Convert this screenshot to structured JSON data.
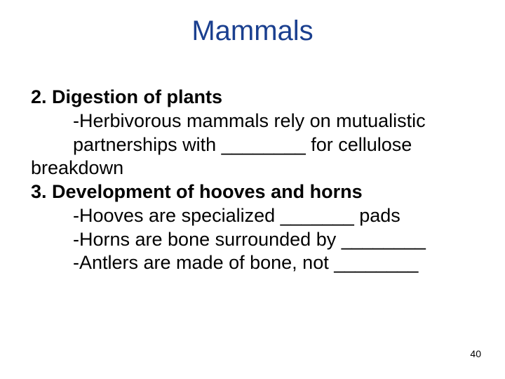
{
  "title": "Mammals",
  "title_color": "#1a3f8f",
  "title_fontsize": 40,
  "body_color": "#000000",
  "body_fontsize": 27,
  "background_color": "#ffffff",
  "lines": {
    "l1": "2. Digestion of plants",
    "l2": "-Herbivorous mammals rely on mutualistic partnerships with ________ for cellulose",
    "l3": "breakdown",
    "l4": "3. Development of hooves and horns",
    "l5": "-Hooves are specialized _______ pads",
    "l6": "-Horns are bone surrounded by ________",
    "l7": "-Antlers are made of bone, not ________"
  },
  "page_number": "40"
}
